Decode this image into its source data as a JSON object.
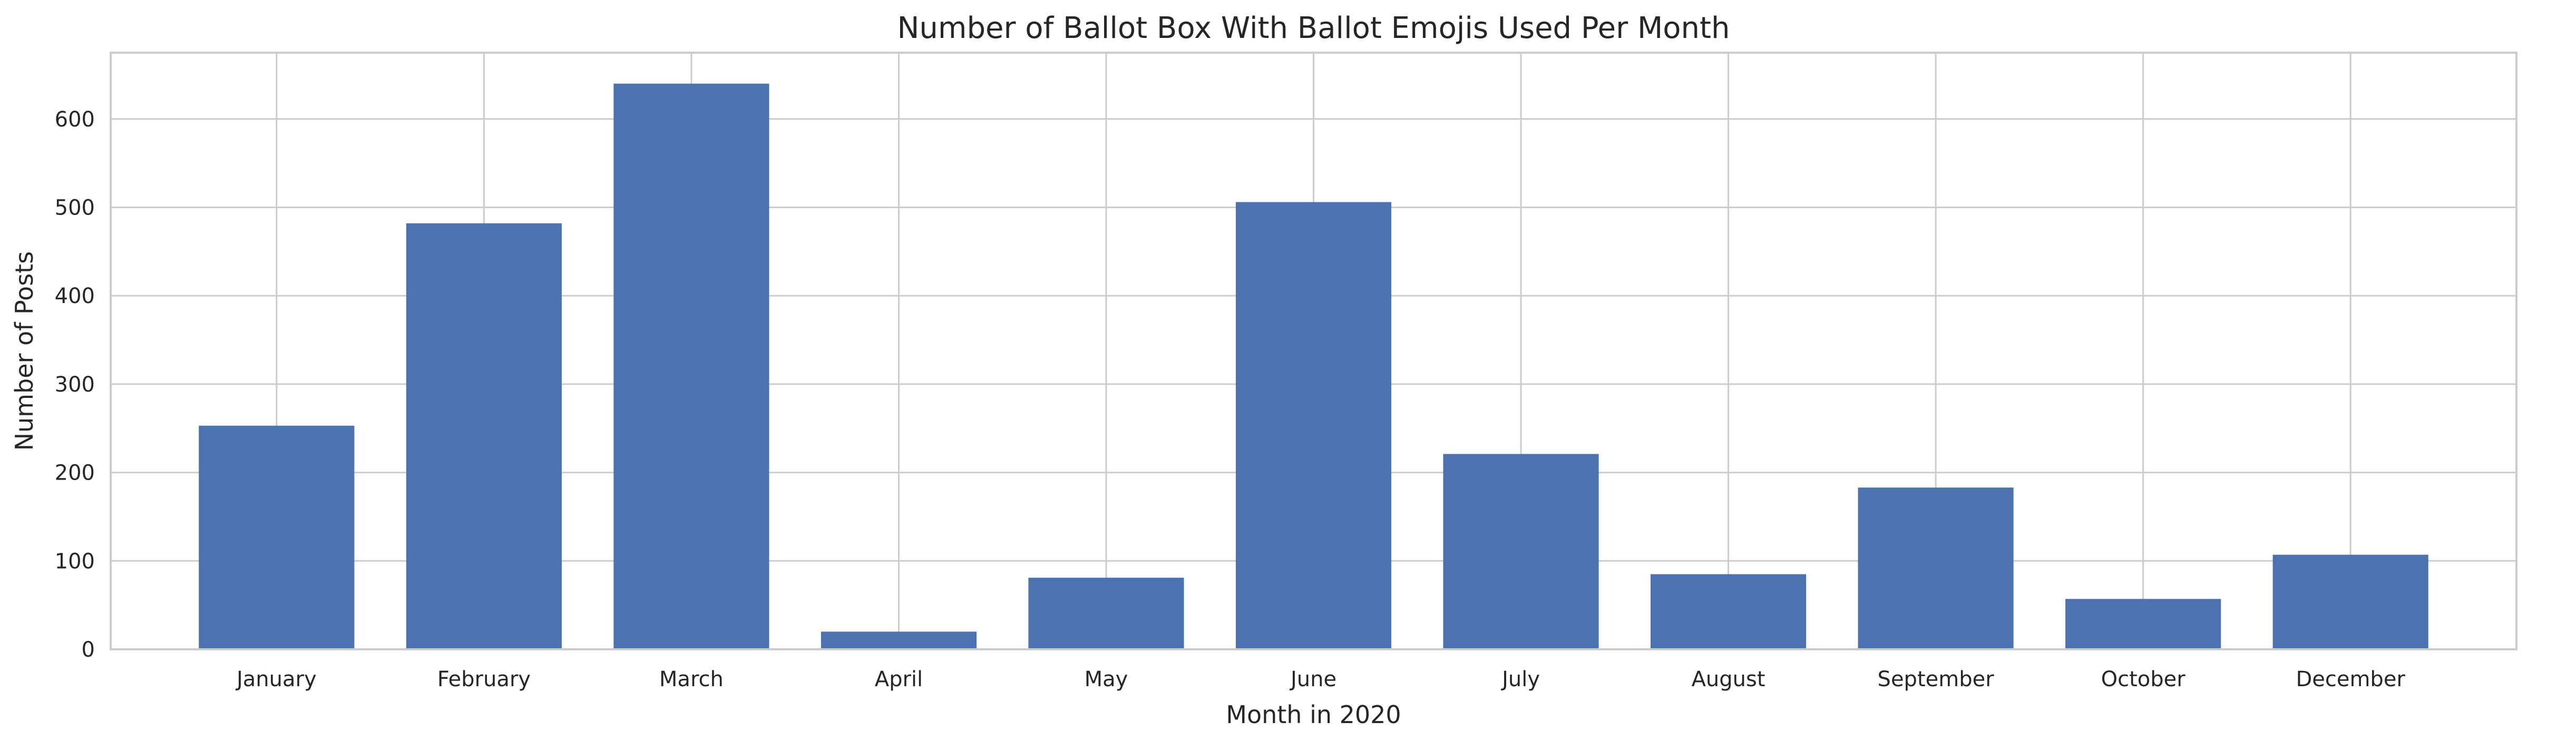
{
  "chart_data": {
    "type": "bar",
    "title": "Number of Ballot Box With Ballot Emojis Used Per Month",
    "xlabel": "Month in 2020",
    "ylabel": "Number of Posts",
    "categories": [
      "January",
      "February",
      "March",
      "April",
      "May",
      "June",
      "July",
      "August",
      "September",
      "October",
      "December"
    ],
    "values": [
      253,
      482,
      640,
      20,
      81,
      506,
      221,
      85,
      183,
      57,
      107
    ],
    "ylim": [
      0,
      675
    ],
    "yticks": [
      0,
      100,
      200,
      300,
      400,
      500,
      600
    ],
    "grid": true,
    "bar_color": "#4c72b0"
  }
}
